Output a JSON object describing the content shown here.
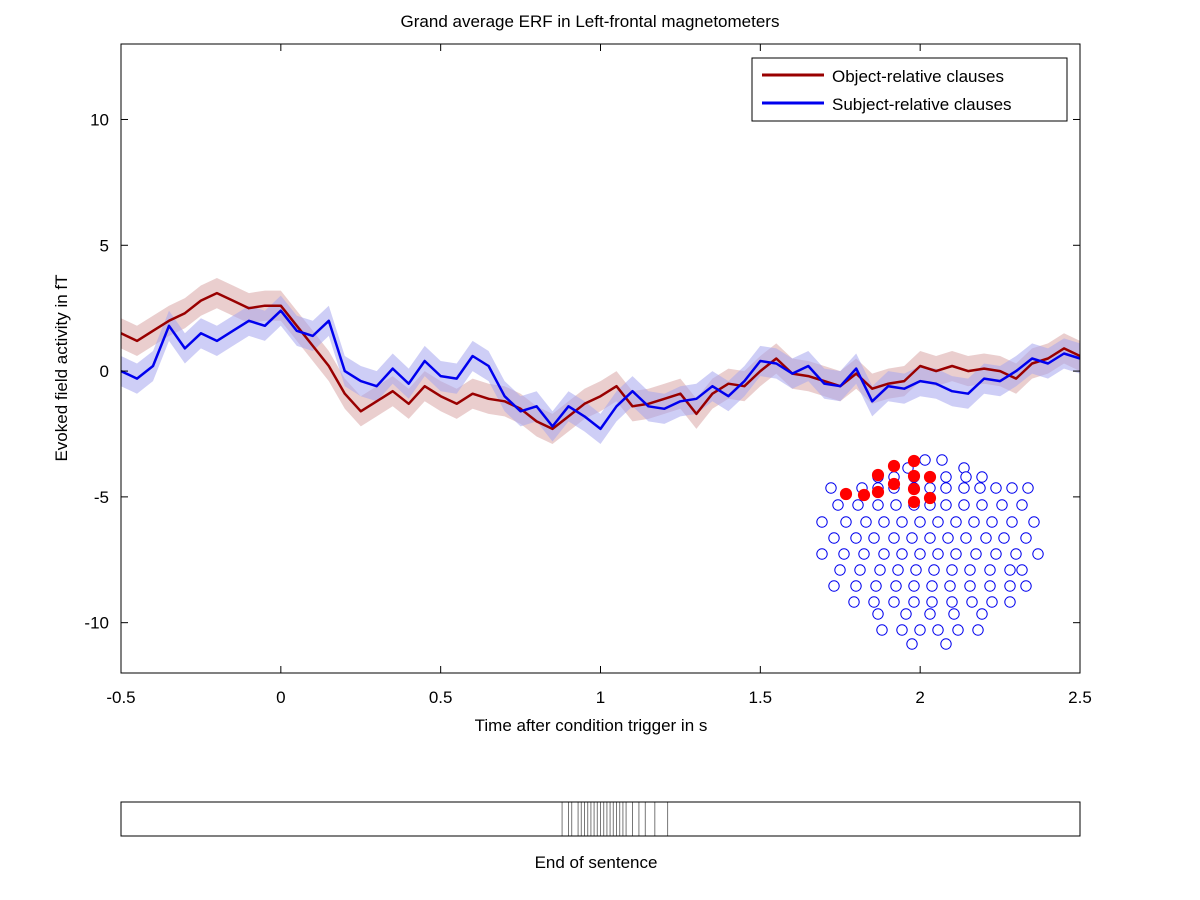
{
  "chart_data": [
    {
      "type": "line",
      "title": "Grand average ERF in Left-frontal magnetometers",
      "xlabel": "Time after condition trigger in s",
      "ylabel": "Evoked field activity in fT",
      "xlim": [
        -0.5,
        2.5
      ],
      "ylim": [
        -12,
        13
      ],
      "xticks": [
        -0.5,
        0,
        0.5,
        1,
        1.5,
        2,
        2.5
      ],
      "xtick_labels": [
        "-0.5",
        "0",
        "0.5",
        "1",
        "1.5",
        "2",
        "2.5"
      ],
      "yticks": [
        -10,
        -5,
        0,
        5,
        10
      ],
      "ytick_labels": [
        "-10",
        "-5",
        "0",
        "5",
        "10"
      ],
      "legend_position": "top-right",
      "series": [
        {
          "name": "Object-relative clauses",
          "color": "#990000",
          "band_color": "#d9a6a6",
          "x": [
            -0.5,
            -0.45,
            -0.4,
            -0.35,
            -0.3,
            -0.25,
            -0.2,
            -0.15,
            -0.1,
            -0.05,
            0,
            0.05,
            0.1,
            0.15,
            0.2,
            0.25,
            0.3,
            0.35,
            0.4,
            0.45,
            0.5,
            0.55,
            0.6,
            0.65,
            0.7,
            0.75,
            0.8,
            0.85,
            0.9,
            0.95,
            1,
            1.05,
            1.1,
            1.15,
            1.2,
            1.25,
            1.3,
            1.35,
            1.4,
            1.45,
            1.5,
            1.55,
            1.6,
            1.65,
            1.7,
            1.75,
            1.8,
            1.85,
            1.9,
            1.95,
            2,
            2.05,
            2.1,
            2.15,
            2.2,
            2.25,
            2.3,
            2.35,
            2.4,
            2.45,
            2.5
          ],
          "y": [
            1.5,
            1.2,
            1.6,
            2.0,
            2.3,
            2.8,
            3.1,
            2.8,
            2.5,
            2.6,
            2.6,
            1.8,
            1.0,
            0.2,
            -0.9,
            -1.6,
            -1.2,
            -0.8,
            -1.3,
            -0.6,
            -1.0,
            -1.3,
            -0.9,
            -1.1,
            -1.2,
            -1.5,
            -2.0,
            -2.3,
            -1.8,
            -1.3,
            -1.0,
            -0.6,
            -1.4,
            -1.3,
            -1.1,
            -0.9,
            -1.7,
            -0.9,
            -0.5,
            -0.6,
            0.0,
            0.5,
            -0.1,
            -0.2,
            -0.4,
            -0.6,
            -0.1,
            -0.7,
            -0.5,
            -0.4,
            0.2,
            0.0,
            0.2,
            0.0,
            0.1,
            0.0,
            -0.3,
            0.3,
            0.5,
            0.9,
            0.6
          ],
          "band": 0.6
        },
        {
          "name": "Subject-relative clauses",
          "color": "#0000ee",
          "band_color": "#a6a6ee",
          "x": [
            -0.5,
            -0.45,
            -0.4,
            -0.35,
            -0.3,
            -0.25,
            -0.2,
            -0.15,
            -0.1,
            -0.05,
            0,
            0.05,
            0.1,
            0.15,
            0.2,
            0.25,
            0.3,
            0.35,
            0.4,
            0.45,
            0.5,
            0.55,
            0.6,
            0.65,
            0.7,
            0.75,
            0.8,
            0.85,
            0.9,
            0.95,
            1,
            1.05,
            1.1,
            1.15,
            1.2,
            1.25,
            1.3,
            1.35,
            1.4,
            1.45,
            1.5,
            1.55,
            1.6,
            1.65,
            1.7,
            1.75,
            1.8,
            1.85,
            1.9,
            1.95,
            2,
            2.05,
            2.1,
            2.15,
            2.2,
            2.25,
            2.3,
            2.35,
            2.4,
            2.45,
            2.5
          ],
          "y": [
            0.0,
            -0.3,
            0.2,
            1.8,
            0.9,
            1.5,
            1.2,
            1.6,
            2.0,
            1.8,
            2.4,
            1.6,
            1.4,
            2.0,
            0.0,
            -0.4,
            -0.6,
            0.1,
            -0.5,
            0.4,
            -0.2,
            -0.3,
            0.6,
            0.2,
            -1.0,
            -1.6,
            -1.4,
            -2.2,
            -1.4,
            -1.8,
            -2.3,
            -1.4,
            -0.8,
            -1.4,
            -1.5,
            -1.2,
            -1.1,
            -0.6,
            -1.0,
            -0.4,
            0.4,
            0.3,
            -0.1,
            0.2,
            -0.5,
            -0.6,
            0.1,
            -1.2,
            -0.6,
            -0.7,
            -0.4,
            -0.5,
            -0.8,
            -0.9,
            -0.3,
            -0.4,
            0.0,
            0.5,
            0.3,
            0.7,
            0.5
          ],
          "band": 0.6
        }
      ],
      "sensor_inset": {
        "selected_label": "Left-frontal",
        "active_color": "#ff0000",
        "inactive_color": "#0000ee"
      }
    },
    {
      "type": "event-raster",
      "xlabel": "End of sentence",
      "xlim": [
        -0.5,
        2.5
      ],
      "events": [
        0.88,
        0.9,
        0.91,
        0.93,
        0.94,
        0.95,
        0.96,
        0.97,
        0.98,
        0.99,
        1.0,
        1.01,
        1.02,
        1.03,
        1.04,
        1.05,
        1.06,
        1.07,
        1.08,
        1.1,
        1.12,
        1.14,
        1.17,
        1.21
      ]
    }
  ]
}
